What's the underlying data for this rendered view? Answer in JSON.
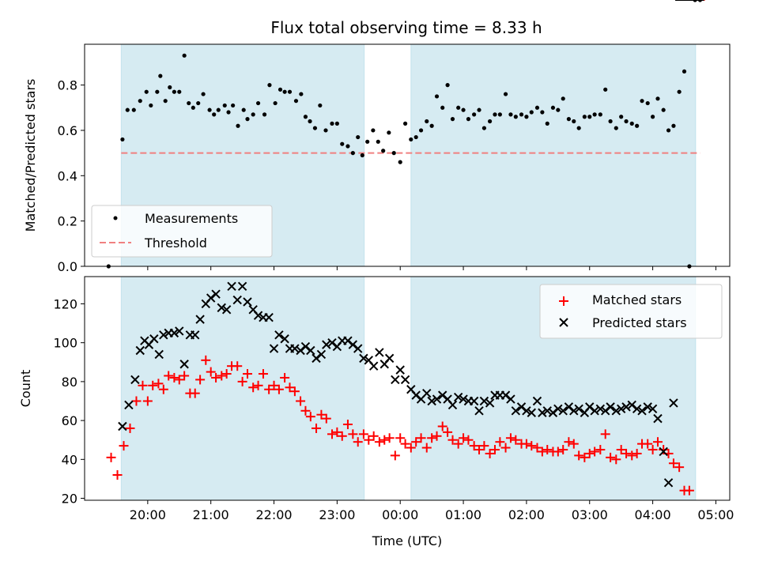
{
  "chart_data": [
    {
      "type": "scatter",
      "title": "Flux total observing time = 8.33 h",
      "xlabel": "",
      "ylabel": "Matched/Predicted stars",
      "ylim": [
        0,
        0.98
      ],
      "yticks": [
        "0.0",
        "0.2",
        "0.4",
        "0.6",
        "0.8"
      ],
      "grid": false,
      "legend_position": "lower-left",
      "shaded_intervals_utc_hours": [
        [
          19.58,
          23.43
        ],
        [
          24.17,
          28.68
        ]
      ],
      "series": [
        {
          "name": "Measurements",
          "marker": "dot",
          "color": "#000000",
          "x_utc_hours": [
            19.38,
            19.6,
            19.68,
            19.78,
            19.88,
            19.98,
            20.05,
            20.15,
            20.2,
            20.28,
            20.35,
            20.42,
            20.5,
            20.58,
            20.65,
            20.72,
            20.8,
            20.88,
            20.98,
            21.05,
            21.12,
            21.22,
            21.28,
            21.35,
            21.43,
            21.52,
            21.58,
            21.67,
            21.75,
            21.85,
            21.93,
            22.02,
            22.1,
            22.17,
            22.25,
            22.35,
            22.43,
            22.5,
            22.57,
            22.65,
            22.73,
            22.82,
            22.92,
            23.0,
            23.08,
            23.17,
            23.25,
            23.33,
            23.4,
            23.48,
            23.57,
            23.65,
            23.73,
            23.82,
            23.9,
            24.0,
            24.08,
            24.17,
            24.25,
            24.33,
            24.42,
            24.5,
            24.58,
            24.67,
            24.75,
            24.83,
            24.92,
            25.0,
            25.08,
            25.17,
            25.25,
            25.33,
            25.42,
            25.5,
            25.58,
            25.67,
            25.75,
            25.83,
            25.92,
            26.0,
            26.08,
            26.17,
            26.25,
            26.33,
            26.42,
            26.5,
            26.58,
            26.67,
            26.75,
            26.83,
            26.92,
            27.0,
            27.08,
            27.17,
            27.25,
            27.33,
            27.42,
            27.5,
            27.58,
            27.67,
            27.75,
            27.83,
            27.92,
            28.0,
            28.08,
            28.17,
            28.25,
            28.33,
            28.42,
            28.5,
            28.58,
            28.67,
            28.75
          ],
          "values": [
            0.0,
            0.56,
            0.69,
            0.69,
            0.73,
            0.77,
            0.71,
            0.77,
            0.84,
            0.73,
            0.79,
            0.77,
            0.77,
            0.93,
            0.72,
            0.7,
            0.72,
            0.76,
            0.69,
            0.67,
            0.69,
            0.71,
            0.68,
            0.71,
            0.62,
            0.69,
            0.65,
            0.67,
            0.72,
            0.67,
            0.8,
            0.72,
            0.78,
            0.77,
            0.77,
            0.73,
            0.76,
            0.66,
            0.64,
            0.61,
            0.71,
            0.6,
            0.63,
            0.63,
            0.54,
            0.53,
            0.5,
            0.57,
            0.49,
            0.55,
            0.6,
            0.55,
            0.51,
            0.59,
            0.5,
            0.46,
            0.63,
            0.56,
            0.57,
            0.6,
            0.64,
            0.62,
            0.75,
            0.7,
            0.8,
            0.65,
            0.7,
            0.69,
            0.65,
            0.67,
            0.69,
            0.61,
            0.64,
            0.67,
            0.67,
            0.76,
            0.67,
            0.66,
            0.67,
            0.66,
            0.68,
            0.7,
            0.68,
            0.63,
            0.7,
            0.69,
            0.74,
            0.65,
            0.64,
            0.61,
            0.66,
            0.66,
            0.67,
            0.67,
            0.78,
            0.64,
            0.61,
            0.66,
            0.64,
            0.63,
            0.62,
            0.73,
            0.72,
            0.66,
            0.74,
            0.69,
            0.6,
            0.62,
            0.77,
            0.86,
            0.0
          ]
        },
        {
          "name": "Threshold",
          "style": "dashed",
          "color": "#f08080",
          "x_utc_hours": [
            19.58,
            28.75
          ],
          "values": [
            0.5,
            0.5
          ]
        }
      ]
    },
    {
      "type": "scatter",
      "title": "",
      "xlabel": "Time (UTC)",
      "ylabel": "Count",
      "ylim": [
        19,
        134
      ],
      "yticks": [
        "20",
        "40",
        "60",
        "80",
        "100",
        "120"
      ],
      "xticks": [
        "20:00",
        "21:00",
        "22:00",
        "23:00",
        "00:00",
        "01:00",
        "02:00",
        "03:00",
        "04:00",
        "05:00"
      ],
      "grid": false,
      "legend_position": "upper-right",
      "shaded_intervals_utc_hours": [
        [
          19.58,
          23.43
        ],
        [
          24.17,
          28.68
        ]
      ],
      "series": [
        {
          "name": "Matched stars",
          "marker": "plus",
          "color": "#ff0000",
          "x_utc_hours": [
            19.42,
            19.52,
            19.62,
            19.72,
            19.82,
            19.92,
            20.0,
            20.08,
            20.17,
            20.25,
            20.33,
            20.42,
            20.5,
            20.58,
            20.67,
            20.75,
            20.83,
            20.92,
            21.0,
            21.08,
            21.17,
            21.25,
            21.33,
            21.42,
            21.5,
            21.58,
            21.67,
            21.75,
            21.83,
            21.92,
            22.0,
            22.08,
            22.17,
            22.25,
            22.33,
            22.42,
            22.5,
            22.58,
            22.67,
            22.75,
            22.83,
            22.92,
            23.0,
            23.08,
            23.17,
            23.25,
            23.33,
            23.42,
            23.5,
            23.58,
            23.67,
            23.75,
            23.83,
            23.92,
            24.0,
            24.08,
            24.17,
            24.25,
            24.33,
            24.42,
            24.5,
            24.58,
            24.67,
            24.75,
            24.83,
            24.92,
            25.0,
            25.08,
            25.17,
            25.25,
            25.33,
            25.42,
            25.5,
            25.58,
            25.67,
            25.75,
            25.83,
            25.92,
            26.0,
            26.08,
            26.17,
            26.25,
            26.33,
            26.42,
            26.5,
            26.58,
            26.67,
            26.75,
            26.83,
            26.92,
            27.0,
            27.08,
            27.17,
            27.25,
            27.33,
            27.42,
            27.5,
            27.58,
            27.67,
            27.75,
            27.83,
            27.92,
            28.0,
            28.08,
            28.17,
            28.25,
            28.33,
            28.42,
            28.5,
            28.58,
            28.67,
            28.75
          ],
          "values": [
            41,
            32,
            47,
            56,
            70,
            78,
            70,
            78,
            79,
            76,
            83,
            82,
            81,
            83,
            74,
            74,
            81,
            91,
            85,
            82,
            83,
            84,
            88,
            88,
            80,
            84,
            77,
            78,
            84,
            76,
            78,
            76,
            82,
            77,
            75,
            70,
            65,
            62,
            56,
            63,
            61,
            53,
            54,
            52,
            58,
            53,
            49,
            53,
            50,
            52,
            49,
            50,
            51,
            42,
            51,
            48,
            46,
            49,
            51,
            46,
            51,
            52,
            57,
            54,
            50,
            48,
            51,
            50,
            47,
            45,
            47,
            43,
            45,
            49,
            46,
            51,
            50,
            48,
            48,
            47,
            46,
            44,
            45,
            44,
            44,
            45,
            49,
            48,
            42,
            41,
            43,
            44,
            45,
            53,
            41,
            40,
            45,
            43,
            42,
            43,
            48,
            48,
            45,
            49,
            45,
            43,
            38,
            36,
            24,
            24
          ]
        },
        {
          "name": "Predicted stars",
          "marker": "x",
          "color": "#000000",
          "x_utc_hours": [
            19.6,
            19.7,
            19.8,
            19.88,
            19.95,
            20.02,
            20.1,
            20.18,
            20.25,
            20.33,
            20.42,
            20.5,
            20.58,
            20.67,
            20.75,
            20.83,
            20.92,
            21.0,
            21.08,
            21.17,
            21.25,
            21.33,
            21.42,
            21.5,
            21.58,
            21.67,
            21.75,
            21.83,
            21.92,
            22.0,
            22.08,
            22.17,
            22.25,
            22.33,
            22.42,
            22.5,
            22.58,
            22.67,
            22.75,
            22.83,
            22.92,
            23.0,
            23.08,
            23.17,
            23.25,
            23.33,
            23.42,
            23.5,
            23.58,
            23.67,
            23.75,
            23.83,
            23.92,
            24.0,
            24.08,
            24.17,
            24.25,
            24.33,
            24.42,
            24.5,
            24.58,
            24.67,
            24.75,
            24.83,
            24.92,
            25.0,
            25.08,
            25.17,
            25.25,
            25.33,
            25.42,
            25.5,
            25.58,
            25.67,
            25.75,
            25.83,
            25.92,
            26.0,
            26.08,
            26.17,
            26.25,
            26.33,
            26.42,
            26.5,
            26.58,
            26.67,
            26.75,
            26.83,
            26.92,
            27.0,
            27.08,
            27.17,
            27.25,
            27.33,
            27.42,
            27.5,
            27.58,
            27.67,
            27.75,
            27.83,
            27.92,
            28.0,
            28.08,
            28.17,
            28.25,
            28.33,
            28.42,
            28.5,
            28.58,
            28.67,
            28.75
          ],
          "values": [
            57,
            68,
            81,
            96,
            101,
            99,
            102,
            94,
            104,
            105,
            105,
            106,
            89,
            104,
            104,
            112,
            120,
            123,
            125,
            118,
            117,
            129,
            122,
            129,
            121,
            117,
            114,
            113,
            113,
            97,
            104,
            102,
            97,
            97,
            96,
            98,
            96,
            92,
            94,
            99,
            100,
            98,
            101,
            101,
            99,
            97,
            92,
            91,
            88,
            95,
            89,
            92,
            81,
            86,
            81,
            76,
            73,
            71,
            74,
            70,
            71,
            73,
            71,
            68,
            72,
            71,
            70,
            70,
            65,
            70,
            69,
            73,
            73,
            73,
            71,
            65,
            67,
            65,
            64,
            70,
            64,
            65,
            64,
            66,
            65,
            67,
            65,
            66,
            64,
            67,
            65,
            66,
            65,
            67,
            65,
            66,
            67,
            68,
            66,
            65,
            67,
            66,
            61,
            44,
            28,
            69
          ]
        }
      ]
    }
  ]
}
